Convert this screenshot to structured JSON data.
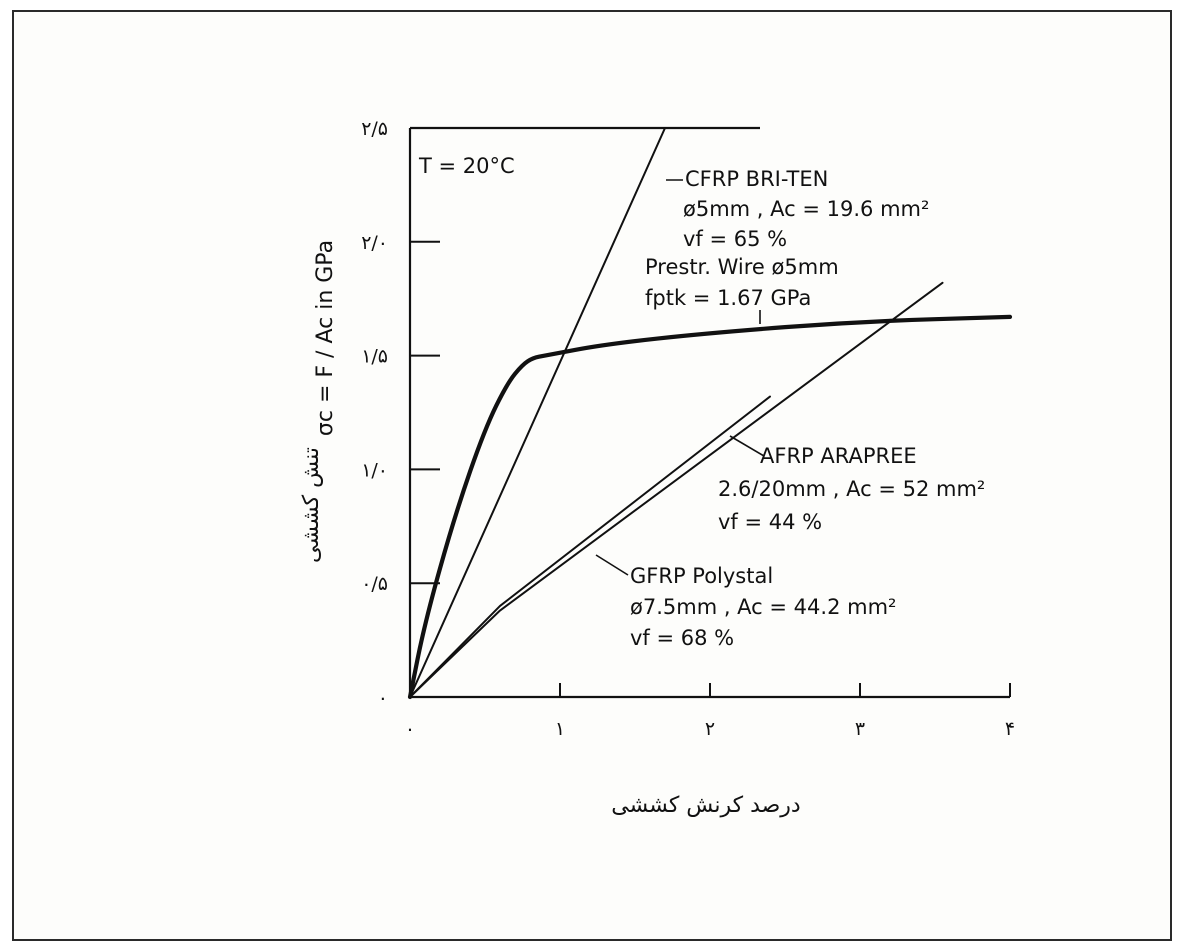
{
  "chart_data": {
    "type": "line",
    "title": "",
    "xlabel": "درصد کرنش کششی",
    "ylabel_symbol": "σc = F / Ac in GPa",
    "ylabel_text": "تنش کششی",
    "xlim": [
      0,
      4
    ],
    "ylim": [
      0,
      2.5
    ],
    "x_ticks": [
      0,
      1,
      2,
      3,
      4
    ],
    "x_tick_labels": [
      "۰",
      "۱",
      "۲",
      "۳",
      "۴"
    ],
    "y_ticks": [
      0,
      0.5,
      1.0,
      1.5,
      2.0,
      2.5
    ],
    "y_tick_labels": [
      "۰",
      "۰/۵",
      "۱/۰",
      "۱/۵",
      "۲/۰",
      "۲/۵"
    ],
    "temperature_label": "T = 20°C",
    "series": [
      {
        "name": "CFRP BRI-TEN",
        "details": [
          "ø5mm , Ac = 19.6 mm²",
          "vf = 65 %"
        ],
        "x": [
          0,
          1.7
        ],
        "y": [
          0,
          2.5
        ],
        "stroke": "thin"
      },
      {
        "name": "Prestr. Wire ø5mm",
        "details": [
          "fptk = 1.67 GPa"
        ],
        "x": [
          0,
          0.1,
          0.3,
          0.5,
          0.65,
          0.75,
          0.82,
          0.9,
          1.3,
          2.0,
          3.0,
          4.0
        ],
        "y": [
          0,
          0.33,
          0.8,
          1.18,
          1.38,
          1.46,
          1.49,
          1.5,
          1.55,
          1.6,
          1.65,
          1.67
        ],
        "stroke": "thick"
      },
      {
        "name": "AFRP ARAPREE",
        "details": [
          "2.6/20mm , Ac = 52 mm²",
          "vf = 44 %"
        ],
        "x": [
          0,
          0.6,
          2.4
        ],
        "y": [
          0,
          0.4,
          1.32
        ],
        "stroke": "thin"
      },
      {
        "name": "GFRP Polystal",
        "details": [
          "ø7.5mm , Ac = 44.2 mm²",
          "vf = 68 %"
        ],
        "x": [
          0,
          0.6,
          3.55
        ],
        "y": [
          0,
          0.38,
          1.82
        ],
        "stroke": "thin"
      }
    ]
  }
}
